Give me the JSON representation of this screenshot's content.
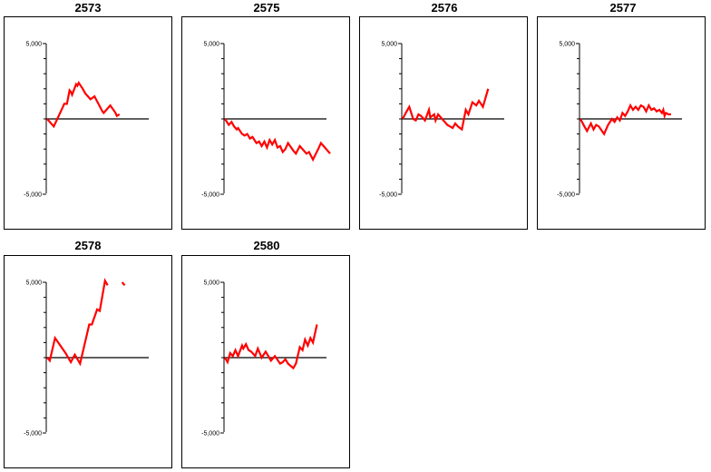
{
  "chart_data": [
    {
      "type": "line",
      "title": "2573",
      "ylim": [
        -5000,
        5000
      ],
      "yticks": [
        "5,000",
        "-5,000"
      ],
      "color": "#ff0000",
      "x": [
        0,
        1,
        2,
        3,
        4,
        5,
        6,
        7,
        8,
        9,
        10,
        11,
        12,
        13,
        14,
        15,
        16,
        17,
        18,
        19,
        20,
        21,
        22,
        23,
        24,
        25,
        26,
        27,
        28,
        29,
        30,
        31,
        32,
        33,
        34,
        35,
        36,
        37,
        38,
        39,
        40,
        41,
        42,
        43,
        44,
        45,
        46,
        47,
        48,
        49,
        50,
        51,
        52,
        53,
        54,
        55
      ],
      "segments": [
        [
          [
            0,
            0
          ],
          [
            5,
            -500
          ],
          [
            12,
            800
          ],
          [
            13,
            1000
          ],
          [
            15,
            1000
          ],
          [
            17,
            1900
          ],
          [
            18,
            1800
          ],
          [
            19,
            1600
          ],
          [
            22,
            2300
          ],
          [
            23,
            2200
          ],
          [
            24,
            2400
          ],
          [
            27,
            2000
          ],
          [
            29,
            1700
          ],
          [
            31,
            1500
          ],
          [
            33,
            1300
          ],
          [
            36,
            1500
          ],
          [
            42,
            500
          ],
          [
            43,
            400
          ],
          [
            48,
            900
          ],
          [
            52,
            400
          ],
          [
            53,
            200
          ],
          [
            55,
            300
          ]
        ]
      ]
    },
    {
      "type": "line",
      "title": "2575",
      "ylim": [
        -5000,
        5000
      ],
      "yticks": [
        "5,000",
        "-5,000"
      ],
      "color": "#ff0000",
      "segments": [
        [
          [
            0,
            0
          ],
          [
            3,
            -400
          ],
          [
            5,
            -200
          ],
          [
            7,
            -500
          ],
          [
            9,
            -700
          ],
          [
            10,
            -600
          ],
          [
            13,
            -1000
          ],
          [
            15,
            -1100
          ],
          [
            17,
            -1000
          ],
          [
            19,
            -1300
          ],
          [
            21,
            -1200
          ],
          [
            24,
            -1600
          ],
          [
            26,
            -1500
          ],
          [
            28,
            -1800
          ],
          [
            30,
            -1500
          ],
          [
            32,
            -1900
          ],
          [
            34,
            -1400
          ],
          [
            36,
            -1700
          ],
          [
            38,
            -1400
          ],
          [
            40,
            -1900
          ],
          [
            42,
            -1800
          ],
          [
            44,
            -2200
          ],
          [
            46,
            -2000
          ],
          [
            48,
            -1600
          ],
          [
            52,
            -2100
          ],
          [
            54,
            -2300
          ],
          [
            57,
            -1800
          ],
          [
            62,
            -2300
          ],
          [
            64,
            -2200
          ],
          [
            67,
            -2700
          ],
          [
            71,
            -2000
          ],
          [
            73,
            -1600
          ],
          [
            76,
            -1900
          ],
          [
            80,
            -2300
          ]
        ]
      ]
    },
    {
      "type": "line",
      "title": "2576",
      "ylim": [
        -5000,
        5000
      ],
      "yticks": [
        "5,000",
        "-5,000"
      ],
      "color": "#ff0000",
      "segments": [
        [
          [
            0,
            0
          ],
          [
            3,
            500
          ],
          [
            5,
            800
          ],
          [
            8,
            0
          ],
          [
            10,
            -100
          ],
          [
            12,
            300
          ],
          [
            14,
            200
          ],
          [
            17,
            -100
          ],
          [
            20,
            600
          ],
          [
            21,
            100
          ],
          [
            24,
            300
          ],
          [
            25,
            -100
          ],
          [
            27,
            300
          ],
          [
            30,
            0
          ],
          [
            34,
            -400
          ],
          [
            36,
            -500
          ],
          [
            38,
            -600
          ],
          [
            40,
            -300
          ],
          [
            42,
            -500
          ],
          [
            45,
            -700
          ],
          [
            48,
            600
          ],
          [
            50,
            300
          ],
          [
            53,
            1100
          ],
          [
            56,
            900
          ],
          [
            58,
            1200
          ],
          [
            61,
            800
          ],
          [
            65,
            2000
          ]
        ]
      ]
    },
    {
      "type": "line",
      "title": "2577",
      "ylim": [
        -5000,
        5000
      ],
      "yticks": [
        "5,000",
        "-5,000"
      ],
      "color": "#ff0000",
      "segments": [
        [
          [
            0,
            0
          ],
          [
            3,
            -500
          ],
          [
            5,
            -800
          ],
          [
            8,
            -300
          ],
          [
            10,
            -700
          ],
          [
            12,
            -400
          ],
          [
            14,
            -500
          ],
          [
            18,
            -1000
          ],
          [
            21,
            -400
          ],
          [
            24,
            0
          ],
          [
            26,
            -200
          ],
          [
            28,
            100
          ],
          [
            30,
            -100
          ],
          [
            32,
            400
          ],
          [
            34,
            200
          ],
          [
            36,
            500
          ],
          [
            38,
            900
          ],
          [
            40,
            600
          ],
          [
            42,
            800
          ],
          [
            44,
            600
          ],
          [
            46,
            900
          ],
          [
            48,
            800
          ],
          [
            50,
            500
          ],
          [
            52,
            900
          ],
          [
            54,
            600
          ],
          [
            56,
            700
          ],
          [
            58,
            500
          ],
          [
            60,
            600
          ],
          [
            62,
            400
          ],
          [
            63,
            600
          ],
          [
            64,
            200
          ],
          [
            65,
            400
          ],
          [
            67,
            300
          ],
          [
            69,
            300
          ]
        ]
      ]
    },
    {
      "type": "line",
      "title": "2578",
      "ylim": [
        -5000,
        5000
      ],
      "yticks": [
        "5,000",
        "-5,000"
      ],
      "color": "#ff0000",
      "segments": [
        [
          [
            0,
            0
          ],
          [
            2,
            -200
          ],
          [
            6,
            1300
          ],
          [
            14,
            300
          ],
          [
            18,
            -300
          ],
          [
            21,
            200
          ],
          [
            25,
            -400
          ],
          [
            32,
            2200
          ],
          [
            34,
            2200
          ],
          [
            38,
            3200
          ],
          [
            40,
            3100
          ],
          [
            44,
            5100
          ],
          [
            46,
            4800
          ]
        ],
        [
          [
            57,
            5000
          ],
          [
            59,
            4800
          ]
        ]
      ]
    },
    {
      "type": "line",
      "title": "2580",
      "ylim": [
        -5000,
        5000
      ],
      "yticks": [
        "5,000",
        "-5,000"
      ],
      "color": "#ff0000",
      "segments": [
        [
          [
            0,
            0
          ],
          [
            2,
            -300
          ],
          [
            4,
            300
          ],
          [
            6,
            100
          ],
          [
            8,
            500
          ],
          [
            10,
            100
          ],
          [
            13,
            800
          ],
          [
            14,
            600
          ],
          [
            16,
            900
          ],
          [
            18,
            500
          ],
          [
            20,
            400
          ],
          [
            23,
            100
          ],
          [
            25,
            600
          ],
          [
            28,
            0
          ],
          [
            31,
            400
          ],
          [
            33,
            100
          ],
          [
            35,
            -200
          ],
          [
            38,
            100
          ],
          [
            42,
            -400
          ],
          [
            44,
            -300
          ],
          [
            46,
            -100
          ],
          [
            48,
            -400
          ],
          [
            52,
            -700
          ],
          [
            54,
            -400
          ],
          [
            57,
            700
          ],
          [
            59,
            500
          ],
          [
            61,
            1200
          ],
          [
            63,
            800
          ],
          [
            65,
            1300
          ],
          [
            67,
            1000
          ],
          [
            70,
            2200
          ]
        ]
      ]
    }
  ]
}
